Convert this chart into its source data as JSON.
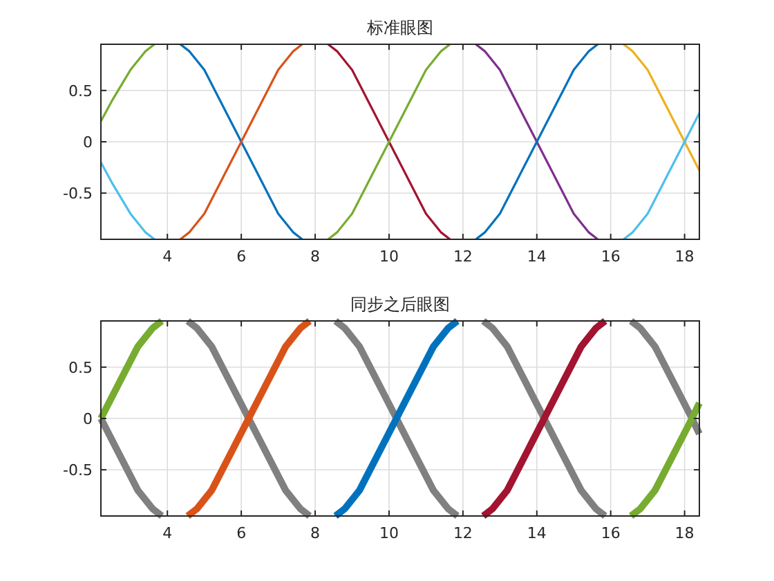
{
  "chart_data": [
    {
      "type": "line",
      "title": "标准眼图",
      "xlim": [
        2.2,
        18.4
      ],
      "ylim": [
        -0.95,
        0.95
      ],
      "xticks": [
        4,
        6,
        8,
        10,
        12,
        14,
        16,
        18
      ],
      "yticks": [
        -0.5,
        0,
        0.5
      ],
      "grid": true,
      "series": [
        {
          "color": "#77ac30",
          "x": [
            2.2,
            2.5,
            3.0,
            3.4,
            3.65
          ],
          "values": [
            0.2,
            0.4,
            0.7,
            0.88,
            0.95
          ]
        },
        {
          "color": "#4dbeee",
          "x": [
            2.2,
            2.5,
            3.0,
            3.4,
            3.65
          ],
          "values": [
            -0.2,
            -0.4,
            -0.7,
            -0.88,
            -0.95
          ]
        },
        {
          "color": "#0072bd",
          "x": [
            4.35,
            4.6,
            5,
            5.5,
            6,
            6.5,
            7,
            7.4,
            7.65
          ],
          "values": [
            0.95,
            0.88,
            0.7,
            0.35,
            0,
            -0.35,
            -0.7,
            -0.88,
            -0.95
          ]
        },
        {
          "color": "#d95319",
          "x": [
            4.35,
            4.6,
            5,
            5.5,
            6,
            6.5,
            7,
            7.4,
            7.65
          ],
          "values": [
            -0.95,
            -0.88,
            -0.7,
            -0.35,
            0,
            0.35,
            0.7,
            0.88,
            0.95
          ]
        },
        {
          "color": "#a2142f",
          "x": [
            8.35,
            8.6,
            9,
            9.5,
            10,
            10.5,
            11,
            11.4,
            11.65
          ],
          "values": [
            0.95,
            0.88,
            0.7,
            0.35,
            0,
            -0.35,
            -0.7,
            -0.88,
            -0.95
          ]
        },
        {
          "color": "#77ac30",
          "x": [
            8.35,
            8.6,
            9,
            9.5,
            10,
            10.5,
            11,
            11.4,
            11.65
          ],
          "values": [
            -0.95,
            -0.88,
            -0.7,
            -0.35,
            0,
            0.35,
            0.7,
            0.88,
            0.95
          ]
        },
        {
          "color": "#7e2f8e",
          "x": [
            12.35,
            12.6,
            13,
            13.5,
            14,
            14.5,
            15,
            15.4,
            15.65
          ],
          "values": [
            0.95,
            0.88,
            0.7,
            0.35,
            0,
            -0.35,
            -0.7,
            -0.88,
            -0.95
          ]
        },
        {
          "color": "#0072bd",
          "x": [
            12.35,
            12.6,
            13,
            13.5,
            14,
            14.5,
            15,
            15.4,
            15.65
          ],
          "values": [
            -0.95,
            -0.88,
            -0.7,
            -0.35,
            0,
            0.35,
            0.7,
            0.88,
            0.95
          ]
        },
        {
          "color": "#edb120",
          "x": [
            16.35,
            16.6,
            17,
            17.5,
            18,
            18.4
          ],
          "values": [
            0.95,
            0.88,
            0.7,
            0.35,
            0,
            -0.28
          ]
        },
        {
          "color": "#4dbeee",
          "x": [
            16.35,
            16.6,
            17,
            17.5,
            18,
            18.4
          ],
          "values": [
            -0.95,
            -0.88,
            -0.7,
            -0.35,
            0,
            0.28
          ]
        }
      ]
    },
    {
      "type": "line",
      "title": "同步之后眼图",
      "xlim": [
        2.2,
        18.4
      ],
      "ylim": [
        -0.95,
        0.95
      ],
      "xticks": [
        4,
        6,
        8,
        10,
        12,
        14,
        16,
        18
      ],
      "yticks": [
        -0.5,
        0,
        0.5
      ],
      "grid": true,
      "series": [
        {
          "color": "#77ac30",
          "x": [
            2.2,
            2.7,
            3.2,
            3.6,
            3.85
          ],
          "values": [
            0,
            0.35,
            0.7,
            0.88,
            0.95
          ]
        },
        {
          "color": "#808080",
          "x": [
            2.2,
            2.7,
            3.2,
            3.6,
            3.85
          ],
          "values": [
            0,
            -0.35,
            -0.7,
            -0.88,
            -0.95
          ]
        },
        {
          "color": "#808080",
          "x": [
            4.55,
            4.8,
            5.2,
            5.7,
            6.2,
            6.7,
            7.2,
            7.6,
            7.85
          ],
          "values": [
            0.95,
            0.88,
            0.7,
            0.35,
            0,
            -0.35,
            -0.7,
            -0.88,
            -0.95
          ]
        },
        {
          "color": "#d95319",
          "x": [
            4.55,
            4.8,
            5.2,
            5.7,
            6.2,
            6.7,
            7.2,
            7.6,
            7.85
          ],
          "values": [
            -0.95,
            -0.88,
            -0.7,
            -0.35,
            0,
            0.35,
            0.7,
            0.88,
            0.95
          ]
        },
        {
          "color": "#808080",
          "x": [
            8.55,
            8.8,
            9.2,
            9.7,
            10.2,
            10.7,
            11.2,
            11.6,
            11.85
          ],
          "values": [
            0.95,
            0.88,
            0.7,
            0.35,
            0,
            -0.35,
            -0.7,
            -0.88,
            -0.95
          ]
        },
        {
          "color": "#0072bd",
          "x": [
            8.55,
            8.8,
            9.2,
            9.7,
            10.2,
            10.7,
            11.2,
            11.6,
            11.85
          ],
          "values": [
            -0.95,
            -0.88,
            -0.7,
            -0.35,
            0,
            0.35,
            0.7,
            0.88,
            0.95
          ]
        },
        {
          "color": "#808080",
          "x": [
            12.55,
            12.8,
            13.2,
            13.7,
            14.2,
            14.7,
            15.2,
            15.6,
            15.85
          ],
          "values": [
            0.95,
            0.88,
            0.7,
            0.35,
            0,
            -0.35,
            -0.7,
            -0.88,
            -0.95
          ]
        },
        {
          "color": "#a2142f",
          "x": [
            12.55,
            12.8,
            13.2,
            13.7,
            14.2,
            14.7,
            15.2,
            15.6,
            15.85
          ],
          "values": [
            -0.95,
            -0.88,
            -0.7,
            -0.35,
            0,
            0.35,
            0.7,
            0.88,
            0.95
          ]
        },
        {
          "color": "#808080",
          "x": [
            16.55,
            16.8,
            17.2,
            17.7,
            18.2,
            18.4
          ],
          "values": [
            0.95,
            0.88,
            0.7,
            0.35,
            0,
            -0.15
          ]
        },
        {
          "color": "#77ac30",
          "x": [
            16.55,
            16.8,
            17.2,
            17.7,
            18.2,
            18.4
          ],
          "values": [
            -0.95,
            -0.88,
            -0.7,
            -0.35,
            0,
            0.15
          ]
        }
      ]
    }
  ]
}
